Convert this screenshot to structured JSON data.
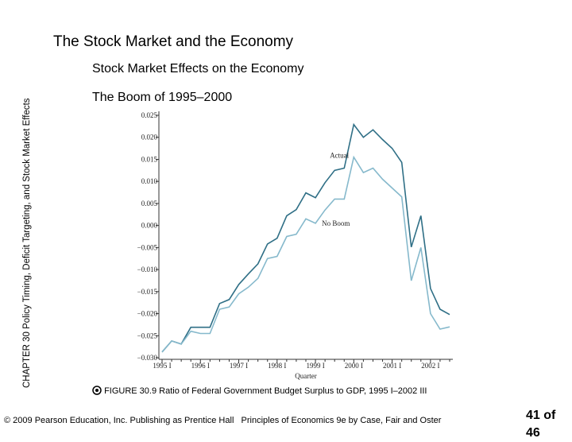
{
  "slide": {
    "title": "The Stock Market and the Economy",
    "subtitle": "Stock Market Effects on the Economy",
    "heading": "The Boom of 1995–2000",
    "side_chapter": "CHAPTER 30",
    "side_text": "Policy Timing, Deficit Targeting, and Stock Market Effects",
    "figure_number": "FIGURE 30.9",
    "figure_caption": "Ratio of Federal Government Budget Surplus to GDP, 1995 I–2002 III",
    "footer": "© 2009 Pearson Education, Inc. Publishing as Prentice Hall   Principles of Economics 9e by Case, Fair and Oster",
    "page": "41 of 46"
  },
  "chart_data": {
    "type": "line",
    "xlabel": "Quarter",
    "categories": [
      "1995 I",
      null,
      null,
      null,
      "1996 I",
      null,
      null,
      null,
      "1997 I",
      null,
      null,
      null,
      "1998 I",
      null,
      null,
      null,
      "1999 I",
      null,
      null,
      null,
      "2000 I",
      null,
      null,
      null,
      "2001 I",
      null,
      null,
      null,
      "2002 I",
      null,
      null
    ],
    "series": [
      {
        "name": "Actual",
        "color": "#2f6f86",
        "values": [
          -0.0287,
          -0.0262,
          -0.0269,
          -0.0231,
          -0.0231,
          -0.0231,
          -0.0177,
          -0.0168,
          -0.0134,
          -0.011,
          -0.0087,
          -0.0042,
          -0.0029,
          0.0022,
          0.0036,
          0.0074,
          0.0063,
          0.0097,
          0.0125,
          0.013,
          0.0229,
          0.02,
          0.0217,
          0.0195,
          0.0175,
          0.0143,
          -0.0049,
          0.0022,
          -0.0143,
          -0.019,
          -0.0202
        ]
      },
      {
        "name": "No Boom",
        "color": "#86b9cc",
        "values": [
          -0.0287,
          -0.0262,
          -0.0269,
          -0.024,
          -0.0245,
          -0.0245,
          -0.019,
          -0.0185,
          -0.0155,
          -0.014,
          -0.012,
          -0.0075,
          -0.007,
          -0.0025,
          -0.002,
          0.0015,
          0.0005,
          0.0035,
          0.006,
          0.006,
          0.0155,
          0.012,
          0.013,
          0.0105,
          0.0085,
          0.0065,
          -0.0125,
          -0.005,
          -0.02,
          -0.0235,
          -0.023
        ]
      }
    ],
    "ylim": [
      -0.03,
      0.025
    ],
    "yticks": [
      {
        "value": -0.03,
        "label": "−0.030"
      },
      {
        "value": -0.025,
        "label": "−0.025"
      },
      {
        "value": -0.02,
        "label": "−0.020"
      },
      {
        "value": -0.015,
        "label": "−0.015"
      },
      {
        "value": -0.01,
        "label": "−0.010"
      },
      {
        "value": -0.005,
        "label": "−0.005"
      },
      {
        "value": 0,
        "label": "0.000"
      },
      {
        "value": 0.005,
        "label": "0.005"
      },
      {
        "value": 0.01,
        "label": "0.010"
      },
      {
        "value": 0.015,
        "label": "0.015"
      },
      {
        "value": 0.02,
        "label": "0.020"
      },
      {
        "value": 0.025,
        "label": "0.025"
      }
    ]
  }
}
